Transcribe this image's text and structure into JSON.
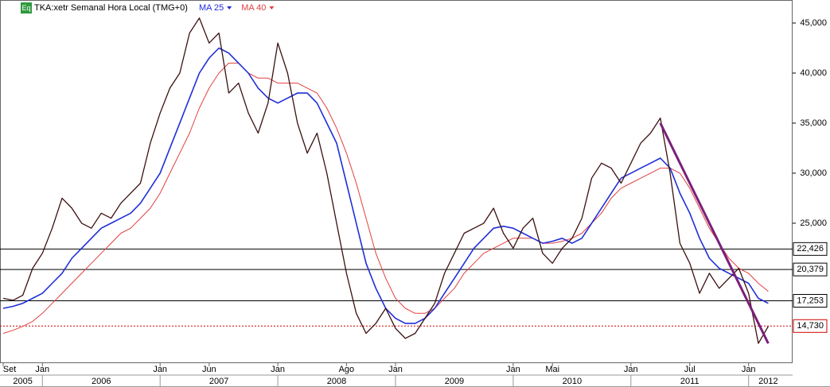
{
  "chart_data": {
    "type": "line",
    "title": "TKA:xetr Semanal Hora Local (TMG+0)",
    "icon": "Eq",
    "x": [
      "2005-09",
      "2005-10",
      "2005-11",
      "2005-12",
      "2006-01",
      "2006-02",
      "2006-03",
      "2006-04",
      "2006-05",
      "2006-06",
      "2006-07",
      "2006-08",
      "2006-09",
      "2006-10",
      "2006-11",
      "2006-12",
      "2007-01",
      "2007-02",
      "2007-03",
      "2007-04",
      "2007-05",
      "2007-06",
      "2007-07",
      "2007-08",
      "2007-09",
      "2007-10",
      "2007-11",
      "2007-12",
      "2008-01",
      "2008-02",
      "2008-03",
      "2008-04",
      "2008-05",
      "2008-06",
      "2008-07",
      "2008-08",
      "2008-09",
      "2008-10",
      "2008-11",
      "2008-12",
      "2009-01",
      "2009-02",
      "2009-03",
      "2009-04",
      "2009-05",
      "2009-06",
      "2009-07",
      "2009-08",
      "2009-09",
      "2009-10",
      "2009-11",
      "2009-12",
      "2010-01",
      "2010-02",
      "2010-03",
      "2010-04",
      "2010-05",
      "2010-06",
      "2010-07",
      "2010-08",
      "2010-09",
      "2010-10",
      "2010-11",
      "2010-12",
      "2011-01",
      "2011-02",
      "2011-03",
      "2011-04",
      "2011-05",
      "2011-06",
      "2011-07",
      "2011-08",
      "2011-09",
      "2011-10",
      "2011-11",
      "2011-12",
      "2012-01",
      "2012-02",
      "2012-03"
    ],
    "xlim": [
      "2005-09",
      "2012-05"
    ],
    "price": {
      "color": "#3a1010",
      "values": [
        17500,
        17300,
        17800,
        20500,
        22000,
        24500,
        27500,
        26500,
        25000,
        24500,
        26000,
        25500,
        27000,
        28000,
        29000,
        33000,
        36000,
        38500,
        40000,
        44000,
        45500,
        43000,
        44000,
        38000,
        39000,
        36000,
        34000,
        37000,
        43000,
        40000,
        35000,
        32000,
        34000,
        30000,
        25000,
        20000,
        16000,
        14000,
        15000,
        16500,
        14500,
        13500,
        14000,
        15500,
        17000,
        20000,
        22000,
        24000,
        24500,
        25000,
        26500,
        24000,
        22500,
        24500,
        25500,
        22000,
        21000,
        22500,
        23500,
        25500,
        29500,
        31000,
        30500,
        29000,
        31000,
        33000,
        34000,
        35500,
        30000,
        23000,
        21000,
        18000,
        20000,
        18500,
        19500,
        20500,
        18000,
        13000,
        14700
      ]
    },
    "series": [
      {
        "name": "MA 25",
        "color": "#1f2fd8",
        "values": [
          16500,
          16700,
          17000,
          17500,
          18000,
          19000,
          20000,
          21500,
          22500,
          23500,
          24500,
          25000,
          25500,
          26000,
          27000,
          28500,
          30000,
          32500,
          35000,
          37500,
          40000,
          41500,
          42500,
          42000,
          41000,
          40000,
          38500,
          37500,
          37000,
          37500,
          38000,
          38000,
          37000,
          35000,
          33000,
          29000,
          25000,
          21000,
          18500,
          16500,
          15500,
          15000,
          15000,
          15500,
          16500,
          18000,
          19500,
          21000,
          22500,
          23500,
          24500,
          24700,
          24500,
          24000,
          23500,
          23000,
          23200,
          23500,
          23000,
          23500,
          25000,
          26500,
          28000,
          29500,
          30000,
          30500,
          31000,
          31500,
          30500,
          28000,
          26000,
          23500,
          21500,
          20500,
          20000,
          19500,
          19000,
          17500,
          17000
        ]
      },
      {
        "name": "MA 40",
        "color": "#e04040",
        "values": [
          14000,
          14300,
          14700,
          15200,
          16000,
          17000,
          18000,
          19000,
          20000,
          21000,
          22000,
          23000,
          24000,
          24500,
          25500,
          26500,
          28000,
          30000,
          32000,
          34000,
          36500,
          38500,
          40000,
          41000,
          41000,
          40000,
          39500,
          39500,
          39000,
          39000,
          39000,
          38500,
          38000,
          36500,
          34500,
          32000,
          29000,
          25500,
          22000,
          19500,
          17500,
          16500,
          16000,
          16000,
          16500,
          17500,
          18500,
          20000,
          21000,
          22000,
          22500,
          23000,
          23500,
          23500,
          23500,
          23000,
          23000,
          23200,
          23500,
          24000,
          25000,
          26000,
          27500,
          28500,
          29000,
          29500,
          30000,
          30500,
          30500,
          30000,
          28500,
          26500,
          24500,
          23000,
          21500,
          20500,
          20000,
          19000,
          18200
        ]
      }
    ],
    "trendline": {
      "color": "#7a1f7a",
      "x": [
        "2011-04",
        "2012-03"
      ],
      "values": [
        35000,
        13000
      ]
    },
    "levels": [
      {
        "value": 22426,
        "label": "22,426",
        "color": "#000000"
      },
      {
        "value": 20379,
        "label": "20,379",
        "color": "#000000"
      },
      {
        "value": 17253,
        "label": "17,253",
        "color": "#000000"
      },
      {
        "value": 14730,
        "label": "14,730",
        "color": "#cc0000",
        "dotted": true
      }
    ],
    "ylim": [
      11100,
      47300
    ],
    "yticks": [
      {
        "value": 25000,
        "label": "25,000"
      },
      {
        "value": 30000,
        "label": "30,000"
      },
      {
        "value": 35000,
        "label": "35,000"
      },
      {
        "value": 40000,
        "label": "40,000"
      },
      {
        "value": 45000,
        "label": "45,000"
      }
    ],
    "month_labels": [
      {
        "value": "2005-09",
        "label": "Set"
      },
      {
        "value": "2006-01",
        "label": "Jan"
      },
      {
        "value": "2007-01",
        "label": "Jan"
      },
      {
        "value": "2007-06",
        "label": "Jun"
      },
      {
        "value": "2008-01",
        "label": "Jan"
      },
      {
        "value": "2008-08",
        "label": "Ago"
      },
      {
        "value": "2009-01",
        "label": "Jan"
      },
      {
        "value": "2010-01",
        "label": "Jan"
      },
      {
        "value": "2010-05",
        "label": "Mai"
      },
      {
        "value": "2011-01",
        "label": "Jan"
      },
      {
        "value": "2011-07",
        "label": "Jul"
      },
      {
        "value": "2012-01",
        "label": "Jan"
      }
    ],
    "year_labels": [
      "2005",
      "2006",
      "2007",
      "2008",
      "2009",
      "2010",
      "2011",
      "2012"
    ]
  }
}
